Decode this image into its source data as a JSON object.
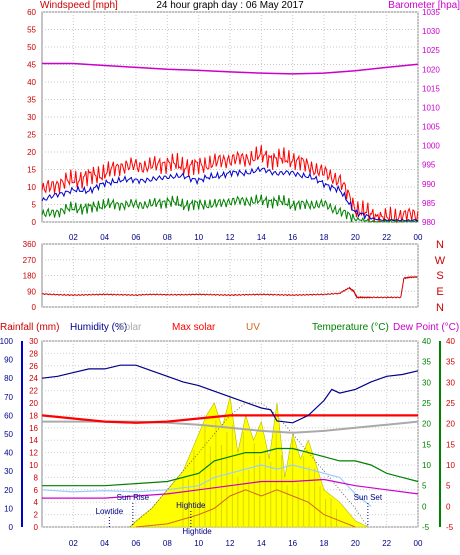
{
  "chart_data": [
    {
      "type": "line",
      "title": "24 hour graph day : 06 May 2017",
      "ylabel_left": "Windspeed [mph]",
      "ylabel_right": "Barometer [hpa]",
      "x_ticks": [
        "02",
        "04",
        "06",
        "08",
        "10",
        "12",
        "14",
        "16",
        "18",
        "20",
        "22",
        "00"
      ],
      "x_range": [
        0,
        24
      ],
      "y_left_ticks": [
        "0",
        "5",
        "10",
        "15",
        "20",
        "25",
        "30",
        "35",
        "40",
        "45",
        "50",
        "55",
        "60"
      ],
      "ylim_left": [
        0,
        60
      ],
      "y_right_ticks": [
        "980",
        "985",
        "990",
        "995",
        "1000",
        "1005",
        "1010",
        "1015",
        "1020",
        "1025",
        "1030",
        "1035"
      ],
      "ylim_right": [
        980,
        1035
      ],
      "grid": true,
      "colors": {
        "gust": "#ff0000",
        "avg": "#0000cc",
        "min": "#008000",
        "baro": "#cc00cc",
        "left_axis": "#cc0000",
        "right_axis": "#cc00cc"
      },
      "series": [
        {
          "key": "gust",
          "axis": "left",
          "x": [
            0,
            1,
            2,
            3,
            4,
            5,
            6,
            7,
            8,
            9,
            10,
            11,
            12,
            13,
            14,
            15,
            16,
            17,
            18,
            19,
            20,
            21,
            22,
            23,
            24
          ],
          "values": [
            9,
            11,
            12,
            13,
            14,
            16,
            16,
            16,
            17,
            16,
            16,
            17,
            18,
            18,
            19,
            18,
            18,
            16,
            14,
            12,
            4,
            2,
            1,
            2,
            2
          ]
        },
        {
          "key": "avg",
          "axis": "left",
          "x": [
            0,
            1,
            2,
            3,
            4,
            5,
            6,
            7,
            8,
            9,
            10,
            11,
            12,
            13,
            14,
            15,
            16,
            17,
            18,
            19,
            20,
            21,
            22,
            23,
            24
          ],
          "values": [
            6,
            8,
            9,
            9,
            11,
            12,
            12,
            12,
            13,
            13,
            12,
            13,
            14,
            14,
            15,
            14,
            14,
            13,
            11,
            9,
            3,
            1,
            0.5,
            0.5,
            0.5
          ]
        },
        {
          "key": "min",
          "axis": "left",
          "x": [
            0,
            1,
            2,
            3,
            4,
            5,
            6,
            7,
            8,
            9,
            10,
            11,
            12,
            13,
            14,
            15,
            16,
            17,
            18,
            19,
            20,
            21,
            22,
            23,
            24
          ],
          "values": [
            2,
            3,
            4,
            4,
            5,
            5,
            5,
            5,
            6,
            5,
            5,
            5,
            6,
            6,
            6,
            6,
            5,
            5,
            5,
            3,
            1,
            0,
            0,
            0,
            0
          ]
        },
        {
          "key": "baro",
          "axis": "right",
          "x": [
            0,
            2,
            4,
            6,
            8,
            10,
            12,
            14,
            16,
            18,
            20,
            22,
            24
          ],
          "values": [
            1021.5,
            1021.5,
            1021,
            1020.5,
            1020,
            1019.7,
            1019.3,
            1019,
            1018.8,
            1019,
            1019.6,
            1020.5,
            1021.3
          ]
        }
      ]
    },
    {
      "type": "line",
      "y_ticks": [
        "0",
        "90",
        "180",
        "270",
        "360"
      ],
      "ylim": [
        0,
        360
      ],
      "compass_labels": [
        "N",
        "W",
        "S",
        "E",
        "N"
      ],
      "x_ticks": [
        "02",
        "04",
        "06",
        "08",
        "10",
        "12",
        "14",
        "16",
        "18",
        "20",
        "22",
        "00"
      ],
      "x_range": [
        0,
        24
      ],
      "grid": true,
      "colors": {
        "direction": "#cc0000"
      },
      "series": [
        {
          "key": "direction",
          "x": [
            0,
            1,
            2,
            3,
            4,
            5,
            6,
            7,
            8,
            9,
            10,
            11,
            12,
            13,
            14,
            15,
            16,
            17,
            18,
            19,
            19.6,
            19.9,
            20.1,
            20.5,
            21,
            22,
            22.9,
            23.1,
            23.5,
            24
          ],
          "values": [
            75,
            70,
            68,
            70,
            72,
            70,
            68,
            72,
            70,
            70,
            72,
            70,
            68,
            70,
            72,
            70,
            68,
            70,
            72,
            78,
            110,
            90,
            55,
            55,
            55,
            55,
            55,
            165,
            170,
            172
          ]
        }
      ]
    },
    {
      "type": "area",
      "legend": [
        "Rainfall (mm)",
        "Humidity (%)",
        "Solar",
        "Max solar",
        "UV",
        "Temperature (°C)",
        "Dew Point (°C)"
      ],
      "x_ticks": [
        "02",
        "04",
        "06",
        "08",
        "10",
        "12",
        "14",
        "16",
        "18",
        "20",
        "22",
        "00"
      ],
      "x_range": [
        0,
        24
      ],
      "y_hum_ticks": [
        "0",
        "10",
        "20",
        "30",
        "40",
        "50",
        "60",
        "70",
        "80",
        "90",
        "100"
      ],
      "ylim_hum": [
        0,
        100
      ],
      "y_rain_ticks": [
        "0",
        "2",
        "4",
        "6",
        "8",
        "10",
        "12",
        "14",
        "16",
        "18",
        "20",
        "22",
        "24",
        "26",
        "28",
        "30"
      ],
      "ylim_rain": [
        0,
        30
      ],
      "y_temp_ticks": [
        "-5",
        "0",
        "5",
        "10",
        "15",
        "20",
        "25",
        "30",
        "35",
        "40"
      ],
      "ylim_temp": [
        -5,
        40
      ],
      "y_dew_ticks": [
        "-5",
        "0",
        "5",
        "10",
        "15",
        "20",
        "25",
        "30",
        "35",
        "40"
      ],
      "annotations": [
        "Lowtide",
        "Hightide",
        "Hightide",
        "Sun Rise",
        "Sun Set"
      ],
      "grid": true,
      "colors": {
        "humidity": "#00008b",
        "solar": "#ffff00",
        "solar_edge": "#b8b800",
        "maxsolar": "#ff0000",
        "uv": "#d2691e",
        "temperature": "#008000",
        "dewpoint": "#cc00cc",
        "rain": "#ff0000",
        "grey": "#aaaaaa",
        "lightblue": "#99ccff"
      },
      "series": [
        {
          "key": "humidity",
          "axis": "hum",
          "x": [
            0,
            1,
            2,
            3,
            4,
            5,
            6,
            7,
            8,
            9,
            10,
            11,
            12,
            13,
            14,
            14.6,
            15,
            16,
            17,
            18,
            18.5,
            19,
            20,
            21,
            22,
            23,
            24
          ],
          "values": [
            80,
            81,
            83,
            85,
            85,
            87,
            87,
            84,
            81,
            78,
            76,
            73,
            70,
            67,
            64,
            63,
            57,
            56,
            60,
            68,
            74,
            72,
            74,
            78,
            81,
            82,
            84
          ]
        },
        {
          "key": "rain_line",
          "axis": "rain",
          "x": [
            0,
            2,
            4,
            6,
            8,
            10,
            12,
            14,
            16,
            18,
            20,
            22,
            24
          ],
          "values": [
            18,
            17.5,
            17,
            16.8,
            17,
            17.5,
            18,
            18,
            18,
            18,
            18,
            18,
            18
          ]
        },
        {
          "key": "grey",
          "axis": "rain",
          "x": [
            0,
            2,
            4,
            6,
            8,
            10,
            12,
            14,
            16,
            18,
            20,
            22,
            24
          ],
          "values": [
            17,
            17,
            17,
            17,
            16.8,
            16.5,
            16,
            15.5,
            15.2,
            15.5,
            16,
            16.5,
            17
          ]
        },
        {
          "key": "solar",
          "axis": "rain",
          "x": [
            5.6,
            6,
            7,
            8,
            9,
            10,
            10.5,
            11,
            11.5,
            12,
            12.5,
            13,
            13.5,
            14,
            14.5,
            15,
            15.5,
            16,
            16.5,
            17,
            17.5,
            18,
            19,
            20,
            20.8
          ],
          "values": [
            0,
            1,
            3,
            6,
            9,
            15,
            18,
            20,
            16,
            21,
            12,
            18,
            14,
            17,
            11,
            20,
            8,
            15,
            11,
            14,
            10,
            6,
            4,
            1,
            0
          ]
        },
        {
          "key": "maxsolar",
          "axis": "rain",
          "x": [
            5.6,
            7,
            8,
            9,
            10,
            11,
            12,
            13,
            14,
            15,
            16,
            17,
            18,
            19,
            20,
            20.8
          ],
          "values": [
            0,
            3,
            6,
            9,
            12,
            15,
            18,
            20,
            20,
            18,
            15,
            12,
            9,
            6,
            3,
            0
          ]
        },
        {
          "key": "uv",
          "axis": "rain",
          "x": [
            6,
            8,
            10,
            11,
            12,
            13,
            14,
            15,
            16,
            17,
            18,
            19,
            20
          ],
          "values": [
            0,
            0.5,
            2,
            3,
            5,
            6,
            5,
            6,
            5,
            4,
            2,
            1,
            0
          ]
        },
        {
          "key": "temperature",
          "axis": "temp",
          "x": [
            0,
            2,
            4,
            6,
            8,
            10,
            11,
            12,
            13,
            14,
            15,
            16,
            17,
            18,
            19,
            20,
            21,
            22,
            23,
            24
          ],
          "values": [
            5,
            5,
            5,
            5.5,
            6,
            8,
            11,
            12,
            13,
            13,
            14,
            14,
            13,
            12,
            11,
            11,
            10,
            8,
            7,
            6
          ]
        },
        {
          "key": "dewpoint",
          "axis": "temp",
          "x": [
            0,
            2,
            4,
            6,
            8,
            10,
            12,
            14,
            16,
            18,
            20,
            22,
            24
          ],
          "values": [
            2,
            2,
            2,
            2.5,
            3,
            4,
            5,
            6,
            6,
            6.5,
            5,
            4,
            3
          ]
        },
        {
          "key": "lightblue",
          "axis": "temp",
          "x": [
            0,
            2,
            4,
            6,
            8,
            10,
            11,
            12,
            13,
            14,
            15,
            16,
            17,
            18,
            19,
            20,
            21
          ],
          "values": [
            4,
            3.5,
            3.8,
            3.5,
            4,
            5,
            7,
            8,
            9,
            10,
            9,
            10,
            9,
            8,
            7,
            3,
            0
          ]
        }
      ]
    }
  ]
}
